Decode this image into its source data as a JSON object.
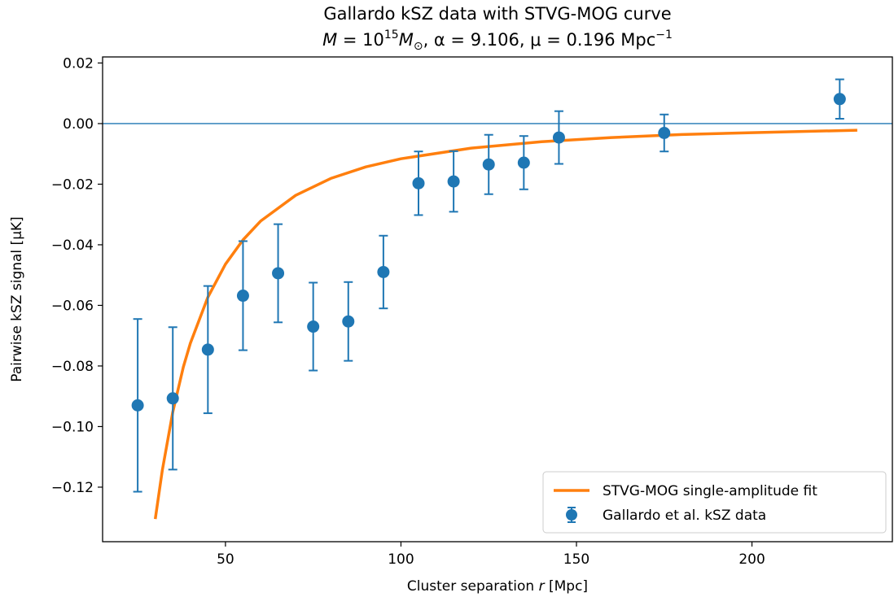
{
  "chart_data": {
    "type": "scatter",
    "title_line1": "Gallardo kSZ data with STVG-MOG curve",
    "title_line2": {
      "M_sym": "M",
      "eq_10": " = 10",
      "exp15": "15",
      "Msun": "M",
      "sun_sub": "⊙",
      "alpha_part": ",  α = 9.106,  μ = 0.196 Mpc",
      "exp_m1": "−1"
    },
    "xlabel_main": "Cluster separation ",
    "xlabel_var": "r",
    "xlabel_unit": " [Mpc]",
    "ylabel": "Pairwise kSZ signal [μK]",
    "xlim": [
      15,
      240
    ],
    "ylim": [
      -0.138,
      0.022
    ],
    "xticks": [
      50,
      100,
      150,
      200
    ],
    "xtick_labels": [
      "50",
      "100",
      "150",
      "200"
    ],
    "yticks": [
      0.02,
      0.0,
      -0.02,
      -0.04,
      -0.06,
      -0.08,
      -0.1,
      -0.12
    ],
    "ytick_labels": [
      "0.02",
      "0.00",
      "−0.02",
      "−0.04",
      "−0.06",
      "−0.08",
      "−0.10",
      "−0.12"
    ],
    "hline_y": 0.0,
    "series": [
      {
        "name": "Gallardo et al. kSZ data",
        "kind": "errorbar",
        "color": "#1f77b4",
        "x": [
          25,
          35,
          45,
          55,
          65,
          75,
          85,
          95,
          105,
          115,
          125,
          135,
          145,
          175,
          225
        ],
        "y": [
          -0.093,
          -0.0907,
          -0.0746,
          -0.0568,
          -0.0494,
          -0.067,
          -0.0653,
          -0.049,
          -0.0197,
          -0.0191,
          -0.0135,
          -0.0129,
          -0.0046,
          -0.0031,
          0.0081
        ],
        "yerr": [
          0.0285,
          0.0235,
          0.021,
          0.018,
          0.0162,
          0.0145,
          0.013,
          0.012,
          0.0105,
          0.01,
          0.0098,
          0.0088,
          0.0087,
          0.0061,
          0.0065
        ]
      },
      {
        "name": "STVG-MOG single-amplitude fit",
        "kind": "line",
        "color": "#ff7f0e",
        "x": [
          30,
          32,
          35,
          38,
          40,
          45,
          50,
          55,
          60,
          70,
          80,
          90,
          100,
          120,
          140,
          160,
          180,
          200,
          230
        ],
        "y": [
          -0.1305,
          -0.1145,
          -0.0952,
          -0.0803,
          -0.0725,
          -0.0573,
          -0.0464,
          -0.0384,
          -0.0322,
          -0.0237,
          -0.0181,
          -0.0143,
          -0.0116,
          -0.0081,
          -0.006,
          -0.0046,
          -0.0036,
          -0.003,
          -0.0022
        ]
      }
    ],
    "legend_position": "lower-right",
    "grid": false
  }
}
